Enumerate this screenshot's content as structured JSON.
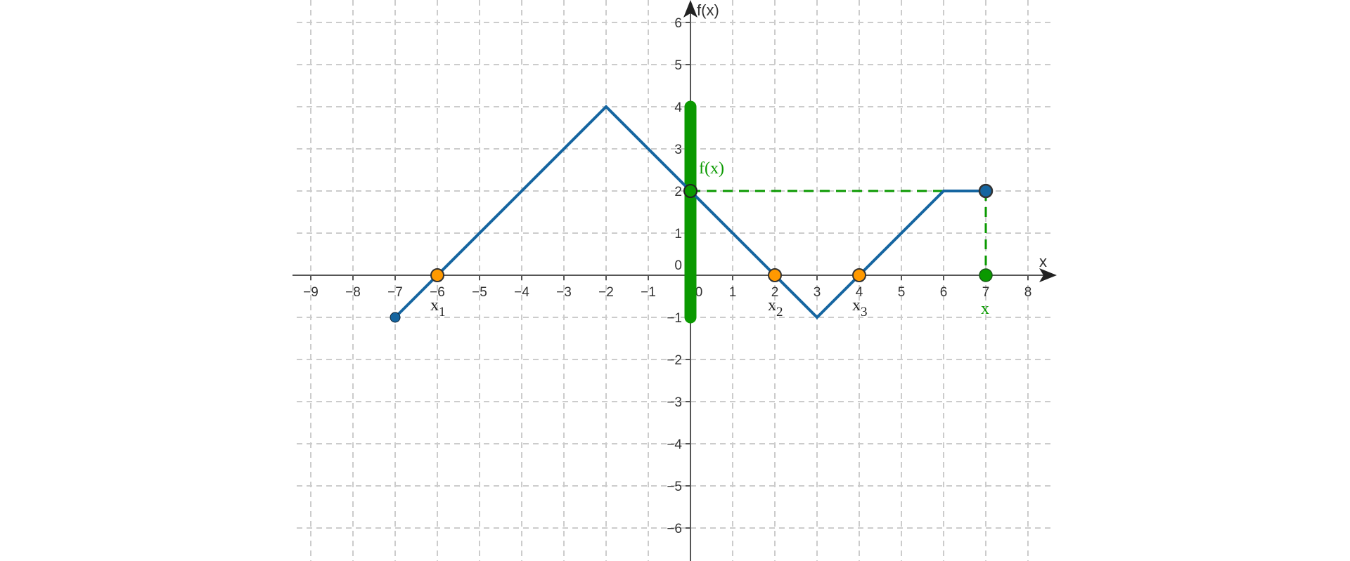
{
  "chart_data": {
    "type": "line",
    "xlabel": "x",
    "ylabel": "f(x)",
    "xlim": [
      -9.2,
      8.5
    ],
    "ylim": [
      -6.5,
      6.3
    ],
    "grid": true,
    "x_ticks": [
      -9,
      -8,
      -7,
      -6,
      -5,
      -4,
      -3,
      -2,
      -1,
      0,
      1,
      2,
      3,
      4,
      5,
      6,
      7,
      8
    ],
    "y_ticks": [
      -6,
      -5,
      -4,
      -3,
      -2,
      -1,
      0,
      1,
      2,
      3,
      4,
      5,
      6
    ],
    "function_points": [
      [
        -7,
        -1
      ],
      [
        -2,
        4
      ],
      [
        3,
        -1
      ],
      [
        6,
        2
      ],
      [
        7,
        2
      ]
    ],
    "range_segment": {
      "x": 0,
      "y_from": -1,
      "y_to": 4,
      "label": ""
    },
    "zeros": [
      {
        "x": -6,
        "y": 0,
        "label": "x",
        "sub": "1"
      },
      {
        "x": 2,
        "y": 0,
        "label": "x",
        "sub": "2"
      },
      {
        "x": 4,
        "y": 0,
        "label": "x",
        "sub": "3"
      }
    ],
    "selected_x": {
      "x": 7,
      "label": "x"
    },
    "selected_fx": {
      "y": 2,
      "label": "f(x)"
    },
    "colors": {
      "function": "#1565a0",
      "range": "#0a9900",
      "zeros": "#ff9900",
      "grid": "#cccccc",
      "axis": "#555555"
    }
  }
}
